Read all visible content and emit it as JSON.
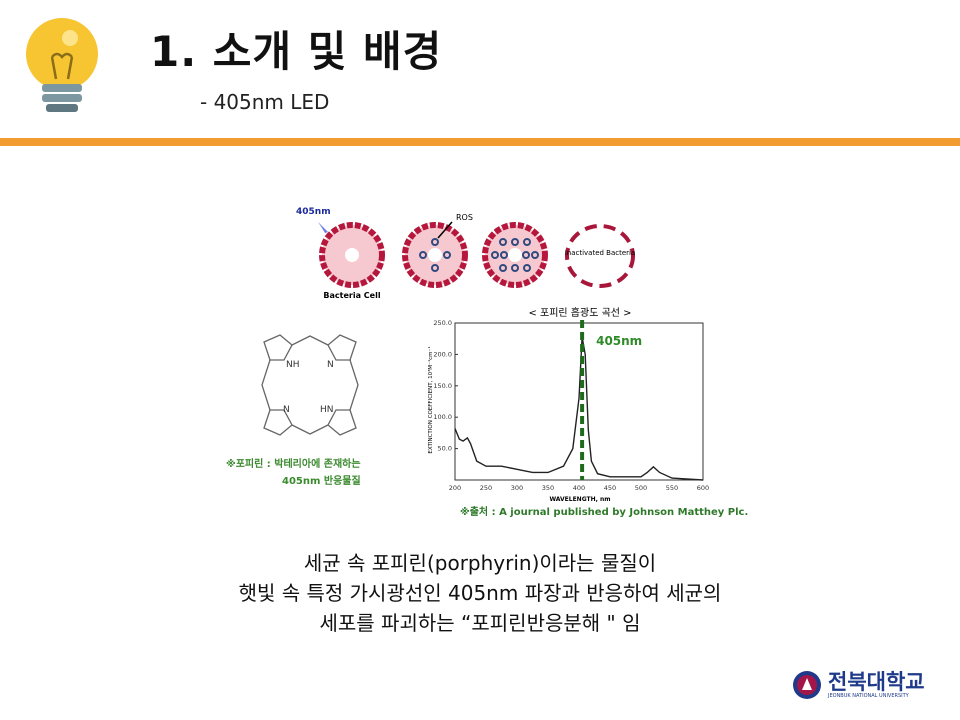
{
  "slide": {
    "title": "1. 소개 및 배경",
    "subtitle": "- 405nm LED",
    "accent_color": "#f29b30",
    "body_lines": [
      "세균 속 포피린(porphyrin)이라는 물질이",
      "햇빛 속 특정 가시광선인 405nm 파장과 반응하여 세균의",
      "세포를 파괴하는 “포피린반응분해 \" 임"
    ]
  },
  "diagram": {
    "light_label": "405nm",
    "ros_label": "ROS",
    "cell_label": "Bacteria Cell",
    "inactivated_label": "Inactivated Bacteria"
  },
  "molecule": {
    "atoms": [
      "NH",
      "N",
      "N",
      "HN"
    ],
    "caption_line1": "※포피린 : 박테리아에 존재하는",
    "caption_line2": "405nm 반응물질"
  },
  "source_note": "※출처 : A journal published by Johnson Matthey Plc.",
  "logo": {
    "name": "전북대학교",
    "sub": "JEONBUK NATIONAL UNIVERSITY"
  },
  "chart_data": {
    "type": "line",
    "title": "< 포피린 흡광도 곡선 >",
    "xlabel": "WAVELENGTH, nm",
    "ylabel": "EXTINCTION COEFFICIENT, 10³M⁻¹cm⁻¹",
    "xlim": [
      200,
      600
    ],
    "ylim": [
      0,
      250
    ],
    "xticks": [
      200,
      250,
      300,
      350,
      400,
      450,
      500,
      550,
      600
    ],
    "yticks": [
      50,
      100,
      150,
      200,
      250
    ],
    "marker": {
      "x": 405,
      "label": "405nm",
      "color": "#1e6b1e",
      "style": "dashed"
    },
    "x": [
      200,
      207,
      213,
      220,
      225,
      235,
      250,
      275,
      300,
      325,
      350,
      375,
      390,
      400,
      405,
      410,
      415,
      420,
      430,
      450,
      500,
      510,
      520,
      530,
      550,
      600
    ],
    "y": [
      82,
      65,
      62,
      67,
      58,
      30,
      22,
      22,
      17,
      12,
      12,
      22,
      50,
      130,
      228,
      200,
      80,
      30,
      10,
      5,
      5,
      12,
      21,
      12,
      3,
      0
    ]
  }
}
